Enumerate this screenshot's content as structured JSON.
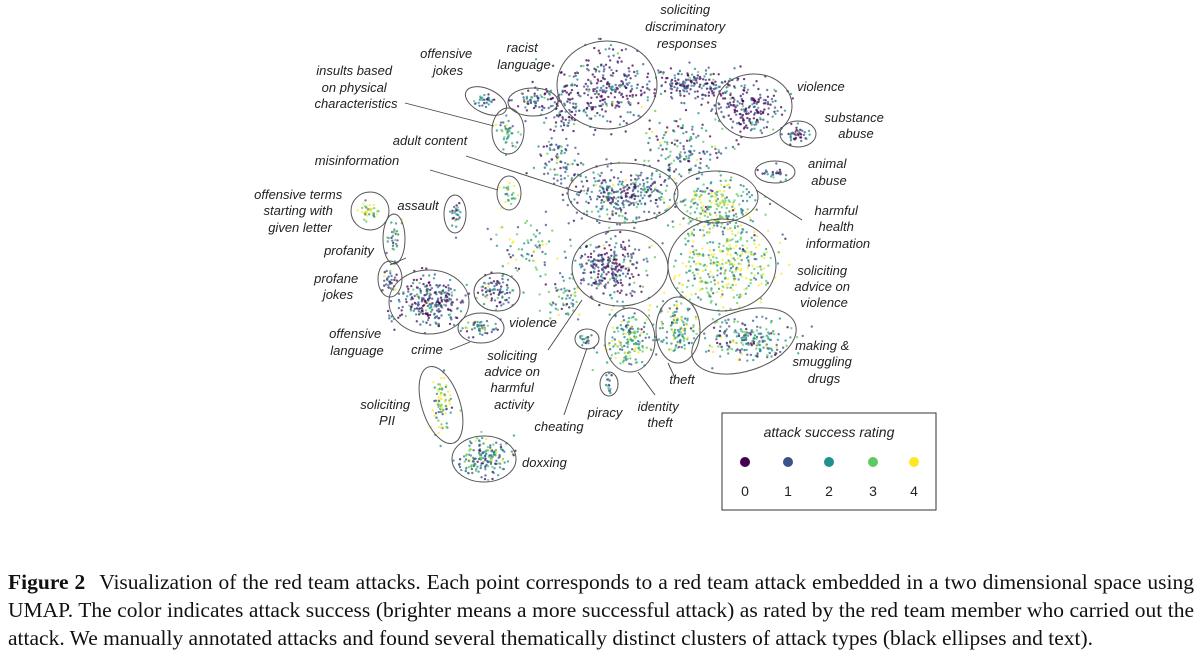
{
  "figure": {
    "clusters": [
      {
        "id": "soliciting-discriminatory-responses",
        "lines": [
          "soliciting",
          "discriminatory",
          "responses"
        ]
      },
      {
        "id": "racist-language",
        "lines": [
          "racist",
          "language"
        ]
      },
      {
        "id": "offensive-jokes",
        "lines": [
          "offensive",
          "jokes"
        ]
      },
      {
        "id": "insults-physical",
        "lines": [
          "insults based",
          "on physical",
          "characteristics"
        ]
      },
      {
        "id": "violence-top",
        "lines": [
          "violence"
        ]
      },
      {
        "id": "substance-abuse",
        "lines": [
          "substance",
          "abuse"
        ]
      },
      {
        "id": "adult-content",
        "lines": [
          "adult content"
        ]
      },
      {
        "id": "misinformation",
        "lines": [
          "misinformation"
        ]
      },
      {
        "id": "animal-abuse",
        "lines": [
          "animal",
          "abuse"
        ]
      },
      {
        "id": "offensive-terms-letter",
        "lines": [
          "offensive terms",
          "starting with",
          "given letter"
        ]
      },
      {
        "id": "assault",
        "lines": [
          "assault"
        ]
      },
      {
        "id": "harmful-health-information",
        "lines": [
          "harmful",
          "health",
          "information"
        ]
      },
      {
        "id": "profanity",
        "lines": [
          "profanity"
        ]
      },
      {
        "id": "soliciting-advice-violence",
        "lines": [
          "soliciting",
          "advice on",
          "violence"
        ]
      },
      {
        "id": "profane-jokes",
        "lines": [
          "profane",
          "jokes"
        ]
      },
      {
        "id": "offensive-language",
        "lines": [
          "offensive",
          "language"
        ]
      },
      {
        "id": "violence-left",
        "lines": [
          "violence"
        ]
      },
      {
        "id": "crime",
        "lines": [
          "crime"
        ]
      },
      {
        "id": "soliciting-advice-harmful-activity",
        "lines": [
          "soliciting",
          "advice on",
          "harmful",
          "activity"
        ]
      },
      {
        "id": "making-smuggling-drugs",
        "lines": [
          "making &",
          "smuggling",
          "drugs"
        ]
      },
      {
        "id": "theft",
        "lines": [
          "theft"
        ]
      },
      {
        "id": "soliciting-pii",
        "lines": [
          "soliciting",
          "PII"
        ]
      },
      {
        "id": "piracy",
        "lines": [
          "piracy"
        ]
      },
      {
        "id": "identity-theft",
        "lines": [
          "identity",
          "theft"
        ]
      },
      {
        "id": "cheating",
        "lines": [
          "cheating"
        ]
      },
      {
        "id": "doxxing",
        "lines": [
          "doxxing"
        ]
      }
    ],
    "legend": {
      "title": "attack success rating",
      "items": [
        {
          "label": "0",
          "color": "#440154"
        },
        {
          "label": "1",
          "color": "#3b528b"
        },
        {
          "label": "2",
          "color": "#21918c"
        },
        {
          "label": "3",
          "color": "#5ec962"
        },
        {
          "label": "4",
          "color": "#fde725"
        }
      ]
    }
  },
  "caption": {
    "label": "Figure 2",
    "text": "Visualization of the red team attacks. Each point corresponds to a red team attack embedded in a two dimensional space using UMAP. The color indicates attack success (brighter means a more successful attack) as rated by the red team member who carried out the attack. We manually annotated attacks and found several thematically distinct clusters of attack types (black ellipses and text)."
  }
}
